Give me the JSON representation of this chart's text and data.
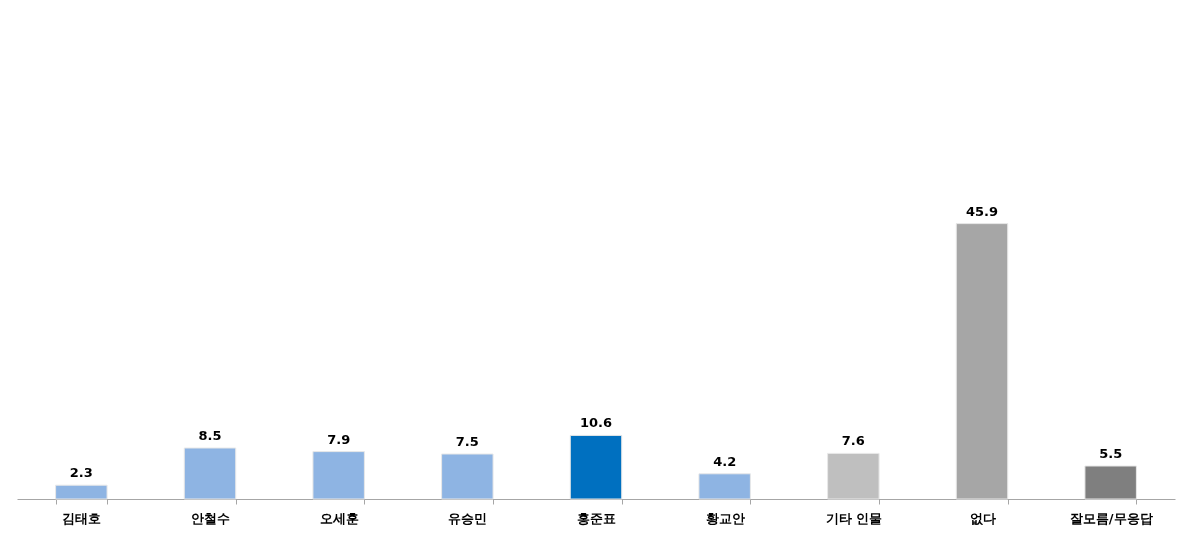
{
  "chart_data": {
    "type": "bar",
    "categories": [
      "김태호",
      "안철수",
      "오세훈",
      "유승민",
      "홍준표",
      "황교안",
      "기타 인물",
      "없다",
      "잘모름/무응답"
    ],
    "values": [
      2.3,
      8.5,
      7.9,
      7.5,
      10.6,
      4.2,
      7.6,
      45.9,
      5.5
    ],
    "colors": [
      "#8eb4e3",
      "#8eb4e3",
      "#8eb4e3",
      "#8eb4e3",
      "#0070c0",
      "#8eb4e3",
      "#bfbfbf",
      "#a6a6a6",
      "#7f7f7f"
    ],
    "data_labels": true
  }
}
